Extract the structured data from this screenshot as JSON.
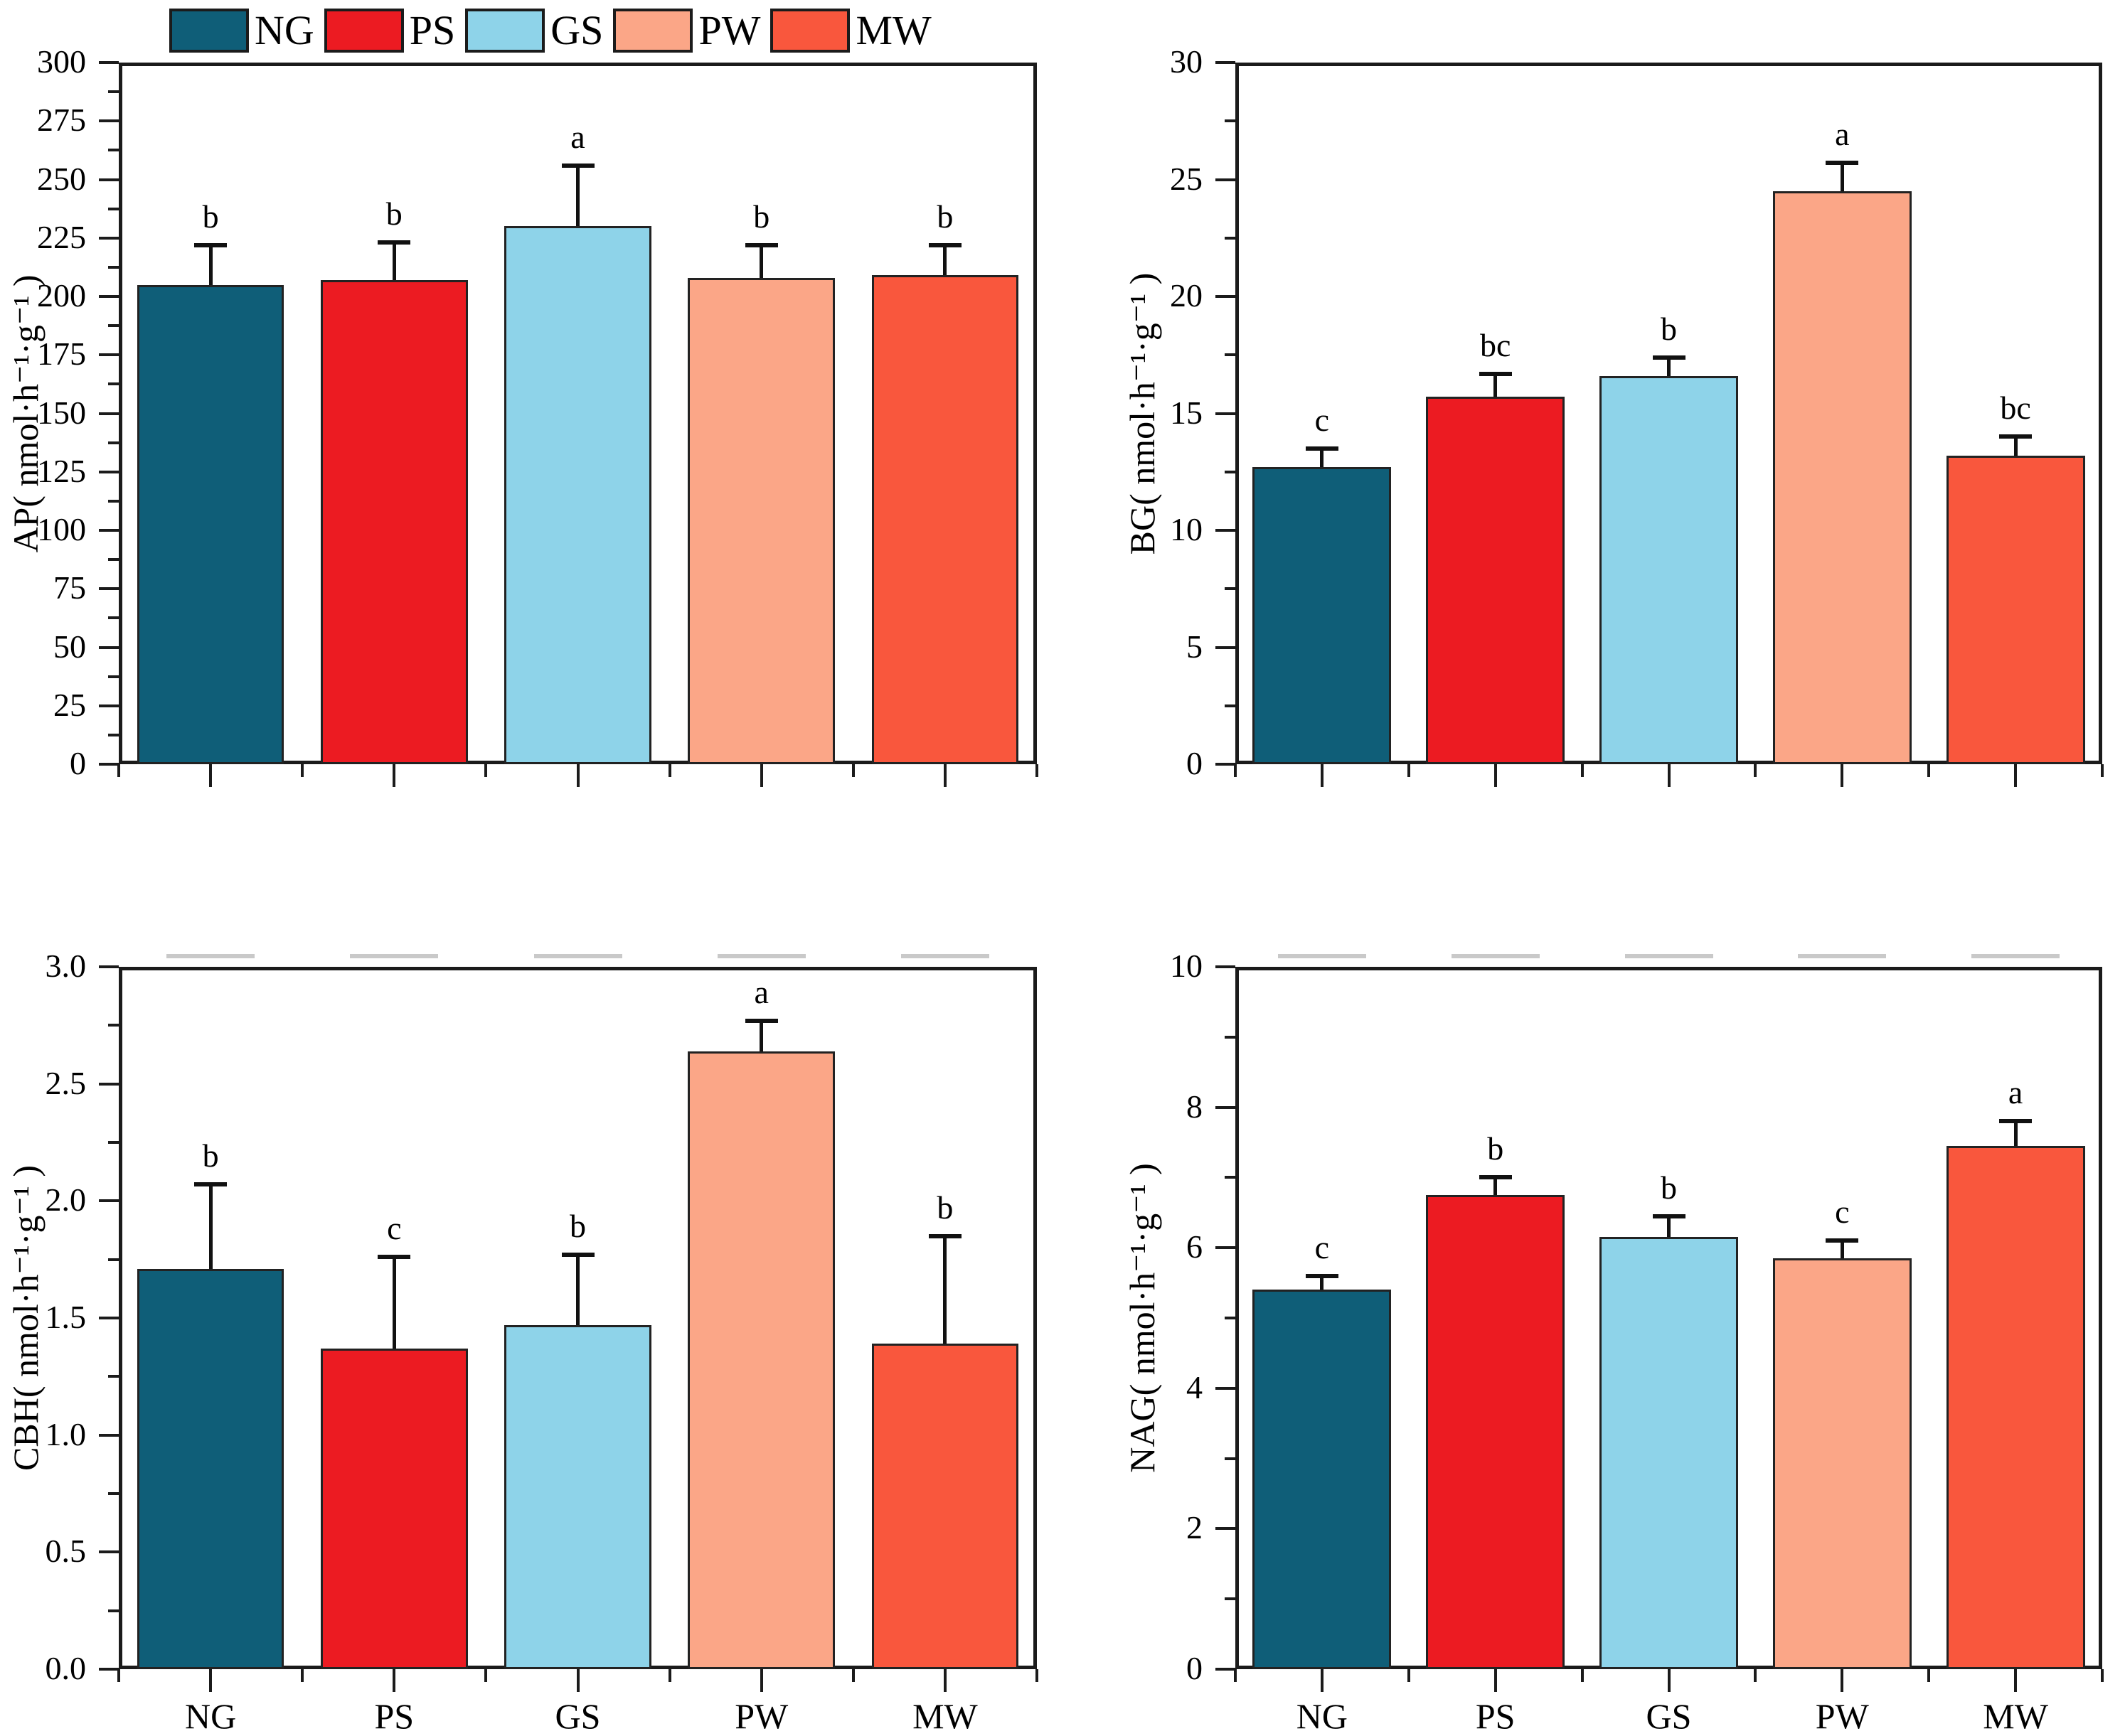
{
  "legend": {
    "items": [
      {
        "label": "NG",
        "color": "#0f5e78"
      },
      {
        "label": "PS",
        "color": "#ec1b22"
      },
      {
        "label": "GS",
        "color": "#8ed3e9"
      },
      {
        "label": "PW",
        "color": "#fba687"
      },
      {
        "label": "MW",
        "color": "#f9573d"
      }
    ]
  },
  "bar_colors": [
    "#0f5e78",
    "#ec1b22",
    "#8ed3e9",
    "#fba687",
    "#f9573d"
  ],
  "chart_data": [
    {
      "type": "bar",
      "title": "",
      "ylabel": "AP( nmol·h⁻¹·g⁻¹ )",
      "categories": [
        "NG",
        "PS",
        "GS",
        "PW",
        "MW"
      ],
      "values": [
        205,
        207,
        230,
        208,
        209
      ],
      "errors_plus": [
        17,
        16,
        26,
        14,
        13
      ],
      "sig_letters": [
        "b",
        "b",
        "a",
        "b",
        "b"
      ],
      "ylim": [
        0,
        300
      ],
      "ytick_step": 25,
      "yminor_step": 12.5,
      "ytick_decimals": 0,
      "show_x_tick_labels": false,
      "top_dashes": false,
      "grid": false,
      "legend_position": "above-top-left"
    },
    {
      "type": "bar",
      "title": "",
      "ylabel": "BG( nmol·h⁻¹·g⁻¹ )",
      "categories": [
        "NG",
        "PS",
        "GS",
        "PW",
        "MW"
      ],
      "values": [
        12.7,
        15.7,
        16.6,
        24.5,
        13.2
      ],
      "errors_plus": [
        0.8,
        1.0,
        0.8,
        1.2,
        0.8
      ],
      "sig_letters": [
        "c",
        "bc",
        "b",
        "a",
        "bc"
      ],
      "ylim": [
        0,
        30
      ],
      "ytick_step": 5,
      "yminor_step": 2.5,
      "ytick_decimals": 0,
      "show_x_tick_labels": false,
      "top_dashes": false,
      "grid": false,
      "legend_position": "none"
    },
    {
      "type": "bar",
      "title": "",
      "ylabel": "CBH( nmol·h⁻¹·g⁻¹ )",
      "categories": [
        "NG",
        "PS",
        "GS",
        "PW",
        "MW"
      ],
      "values": [
        1.71,
        1.37,
        1.47,
        2.64,
        1.39
      ],
      "errors_plus": [
        0.36,
        0.39,
        0.3,
        0.13,
        0.46
      ],
      "sig_letters": [
        "b",
        "c",
        "b",
        "a",
        "b"
      ],
      "ylim": [
        0,
        3.0
      ],
      "ytick_step": 0.5,
      "yminor_step": 0.25,
      "ytick_decimals": 1,
      "show_x_tick_labels": true,
      "top_dashes": true,
      "grid": false,
      "legend_position": "none"
    },
    {
      "type": "bar",
      "title": "",
      "ylabel": "NAG( nmol·h⁻¹·g⁻¹ )",
      "categories": [
        "NG",
        "PS",
        "GS",
        "PW",
        "MW"
      ],
      "values": [
        5.4,
        6.75,
        6.15,
        5.85,
        7.45
      ],
      "errors_plus": [
        0.2,
        0.25,
        0.3,
        0.25,
        0.35
      ],
      "sig_letters": [
        "c",
        "b",
        "b",
        "c",
        "a"
      ],
      "ylim": [
        0,
        10
      ],
      "ytick_step": 2,
      "yminor_step": 1,
      "ytick_decimals": 0,
      "show_x_tick_labels": true,
      "top_dashes": true,
      "grid": false,
      "legend_position": "none"
    }
  ]
}
